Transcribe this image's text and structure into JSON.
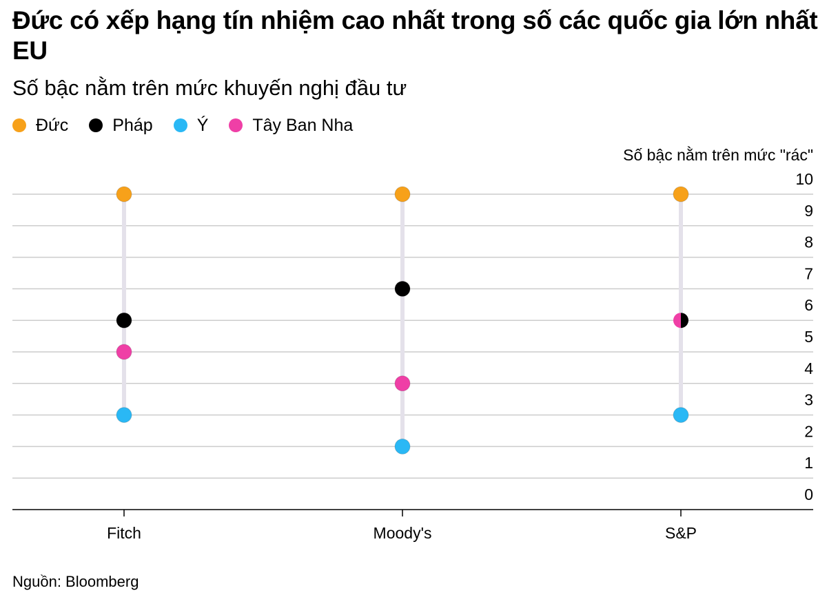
{
  "title": "Đức có xếp hạng tín nhiệm cao nhất trong số các quốc gia lớn nhất EU",
  "subtitle": "Số bậc nằm trên mức khuyến nghị đầu tư",
  "source": "Nguồn: Bloomberg",
  "colors": {
    "duc": "#f7a11a",
    "phap": "#000000",
    "y": "#2ab8f5",
    "tbn": "#ef3fa6",
    "grid": "#cccccc",
    "connector": "#e4e1ea"
  },
  "chart_data": {
    "type": "scatter",
    "ylabel": "Số bậc nằm trên mức \"rác\"",
    "ylim": [
      0,
      10
    ],
    "yticks": [
      "0",
      "1",
      "2",
      "3",
      "4",
      "5",
      "6",
      "7",
      "8",
      "9",
      "10"
    ],
    "categories": [
      "Fitch",
      "Moody's",
      "S&P"
    ],
    "series": [
      {
        "name": "Đức",
        "color_key": "duc",
        "values": [
          10,
          10,
          10
        ]
      },
      {
        "name": "Pháp",
        "color_key": "phap",
        "values": [
          6,
          7,
          6
        ]
      },
      {
        "name": "Ý",
        "color_key": "y",
        "values": [
          3,
          2,
          3
        ]
      },
      {
        "name": "Tây Ban Nha",
        "color_key": "tbn",
        "values": [
          5,
          4,
          6
        ]
      }
    ],
    "legend_position": "top-left",
    "grid": true
  }
}
